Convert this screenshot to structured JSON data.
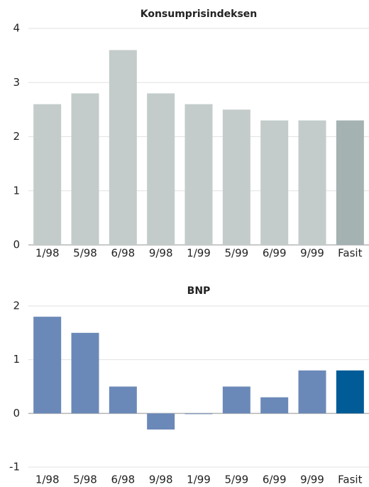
{
  "chart_data": [
    {
      "type": "bar",
      "title": "Konsumprisindeksen",
      "categories": [
        "1/98",
        "5/98",
        "6/98",
        "9/98",
        "1/99",
        "5/99",
        "6/99",
        "9/99",
        "Fasit"
      ],
      "values": [
        2.6,
        2.8,
        3.6,
        2.8,
        2.6,
        2.5,
        2.3,
        2.3,
        2.3
      ],
      "colors": [
        "#c3ccca",
        "#c3ccca",
        "#c3ccca",
        "#c3ccca",
        "#c3ccca",
        "#c3ccca",
        "#c3ccca",
        "#c3ccca",
        "#a4b2b1"
      ],
      "ylim": [
        0,
        4
      ],
      "yticks": [
        0,
        1,
        2,
        3,
        4
      ],
      "grid": true
    },
    {
      "type": "bar",
      "title": "BNP",
      "categories": [
        "1/98",
        "5/98",
        "6/98",
        "9/98",
        "1/99",
        "5/99",
        "6/99",
        "9/99",
        "Fasit"
      ],
      "values": [
        1.8,
        1.5,
        0.5,
        -0.3,
        0,
        0.5,
        0.3,
        0.8,
        0.8
      ],
      "colors": [
        "#6b89b8",
        "#6b89b8",
        "#6b89b8",
        "#6b89b8",
        "#6b89b8",
        "#6b89b8",
        "#6b89b8",
        "#6b89b8",
        "#005b97"
      ],
      "ylim": [
        -1,
        2
      ],
      "yticks": [
        -1,
        0,
        1,
        2
      ],
      "grid": true
    }
  ]
}
